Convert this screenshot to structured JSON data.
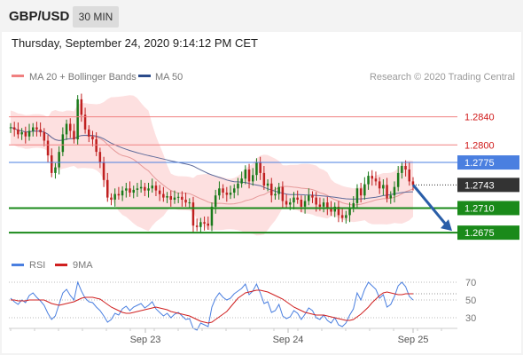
{
  "header": {
    "symbol": "GBP/USD",
    "timeframe": "30 MIN",
    "datetime": "Thursday, September 24, 2020 9:14:12 PM CET"
  },
  "legend": {
    "ma20_label": "MA 20 + Bollinger Bands",
    "ma50_label": "MA 50",
    "rsi_label": "RSI",
    "ma9_label": "9MA",
    "credit": "Research © 2020 Trading Central"
  },
  "colors": {
    "resistance": "#f08080",
    "pivot": "#4a7fe0",
    "support": "#1a8a1a",
    "current": "#333333",
    "arrow": "#2a5ea8",
    "bollinger": "#fde0e0",
    "ma20": "#e69a9a",
    "ma50": "#5f6b9a",
    "candle_up": "#1a7a1a",
    "candle_down": "#c02020",
    "rsi_line": "#4a7fe0",
    "rsi_ma": "#d02020"
  },
  "chart_data": [
    {
      "type": "candlestick",
      "title": "",
      "ylim": [
        1.266,
        1.288
      ],
      "x_ticks": [
        "Sep 23",
        "Sep 24",
        "Sep 25"
      ],
      "levels": [
        {
          "name": "resistance-2",
          "value": 1.284,
          "label": "1.2840",
          "style": "resistance"
        },
        {
          "name": "resistance-1",
          "value": 1.28,
          "label": "1.2800",
          "style": "resistance"
        },
        {
          "name": "pivot",
          "value": 1.2775,
          "label": "1.2775",
          "style": "pivot"
        },
        {
          "name": "current-price",
          "value": 1.2743,
          "label": "1.2743",
          "style": "current"
        },
        {
          "name": "support-1",
          "value": 1.271,
          "label": "1.2710",
          "style": "support"
        },
        {
          "name": "support-2",
          "value": 1.2675,
          "label": "1.2675",
          "style": "support"
        }
      ],
      "close": [
        1.2825,
        1.2822,
        1.2815,
        1.2818,
        1.2812,
        1.282,
        1.2825,
        1.2822,
        1.2818,
        1.2806,
        1.2785,
        1.276,
        1.2768,
        1.279,
        1.2815,
        1.283,
        1.282,
        1.2808,
        1.2865,
        1.2843,
        1.2822,
        1.2812,
        1.2808,
        1.279,
        1.2775,
        1.275,
        1.2725,
        1.2722,
        1.273,
        1.2728,
        1.2735,
        1.2738,
        1.2732,
        1.2736,
        1.2738,
        1.274,
        1.2735,
        1.2738,
        1.2742,
        1.2735,
        1.273,
        1.2725,
        1.2727,
        1.2722,
        1.2725,
        1.2726,
        1.2722,
        1.2718,
        1.2718,
        1.2685,
        1.2683,
        1.269,
        1.2688,
        1.2685,
        1.2712,
        1.2728,
        1.2738,
        1.2732,
        1.2729,
        1.2732,
        1.2738,
        1.2745,
        1.2752,
        1.2765,
        1.2748,
        1.2757,
        1.2775,
        1.276,
        1.2742,
        1.2745,
        1.2728,
        1.273,
        1.274,
        1.272,
        1.2715,
        1.2718,
        1.2725,
        1.2722,
        1.2712,
        1.272,
        1.2728,
        1.2725,
        1.2715,
        1.2712,
        1.2718,
        1.271,
        1.2705,
        1.2712,
        1.27,
        1.2696,
        1.27,
        1.271,
        1.2717,
        1.2738,
        1.2728,
        1.2744,
        1.2756,
        1.2752,
        1.2748,
        1.2738,
        1.2743,
        1.2724,
        1.2728,
        1.274,
        1.276,
        1.277,
        1.2765,
        1.2748,
        1.2743
      ]
    },
    {
      "type": "line",
      "title": "",
      "ylim": [
        20,
        80
      ],
      "y_ticks": [
        70,
        50,
        30
      ],
      "series": [
        {
          "name": "RSI",
          "values": [
            52,
            48,
            45,
            50,
            47,
            55,
            58,
            53,
            49,
            44,
            35,
            28,
            32,
            45,
            58,
            62,
            55,
            50,
            70,
            60,
            52,
            48,
            47,
            42,
            38,
            32,
            25,
            28,
            35,
            33,
            40,
            43,
            38,
            42,
            44,
            46,
            41,
            44,
            48,
            40,
            36,
            32,
            35,
            30,
            34,
            36,
            32,
            28,
            29,
            18,
            16,
            24,
            22,
            20,
            42,
            52,
            58,
            53,
            50,
            52,
            57,
            60,
            63,
            68,
            56,
            60,
            68,
            58,
            46,
            48,
            36,
            38,
            45,
            32,
            29,
            31,
            38,
            35,
            28,
            34,
            41,
            38,
            30,
            28,
            33,
            27,
            24,
            30,
            22,
            20,
            24,
            33,
            40,
            58,
            50,
            62,
            70,
            66,
            62,
            52,
            56,
            42,
            45,
            54,
            66,
            70,
            65,
            54,
            50
          ]
        },
        {
          "name": "9MA",
          "values": [
            50,
            50,
            49,
            49,
            49,
            50,
            50,
            50,
            50,
            50,
            48,
            46,
            45,
            44,
            45,
            46,
            47,
            48,
            50,
            52,
            53,
            53,
            53,
            52,
            51,
            48,
            45,
            42,
            40,
            38,
            36,
            35,
            35,
            36,
            37,
            38,
            39,
            40,
            41,
            42,
            41,
            40,
            39,
            37,
            36,
            35,
            34,
            33,
            32,
            30,
            28,
            26,
            25,
            24,
            25,
            28,
            31,
            34,
            37,
            42,
            47,
            52,
            55,
            58,
            59,
            60,
            61,
            61,
            60,
            59,
            57,
            55,
            53,
            51,
            48,
            45,
            42,
            40,
            38,
            36,
            35,
            34,
            33,
            33,
            33,
            32,
            31,
            30,
            29,
            28,
            27,
            27,
            28,
            31,
            34,
            38,
            42,
            47,
            51,
            55,
            58,
            59,
            58,
            57,
            56,
            56,
            57,
            57,
            57
          ]
        }
      ],
      "reference_lines": [
        70,
        50,
        30
      ]
    }
  ]
}
